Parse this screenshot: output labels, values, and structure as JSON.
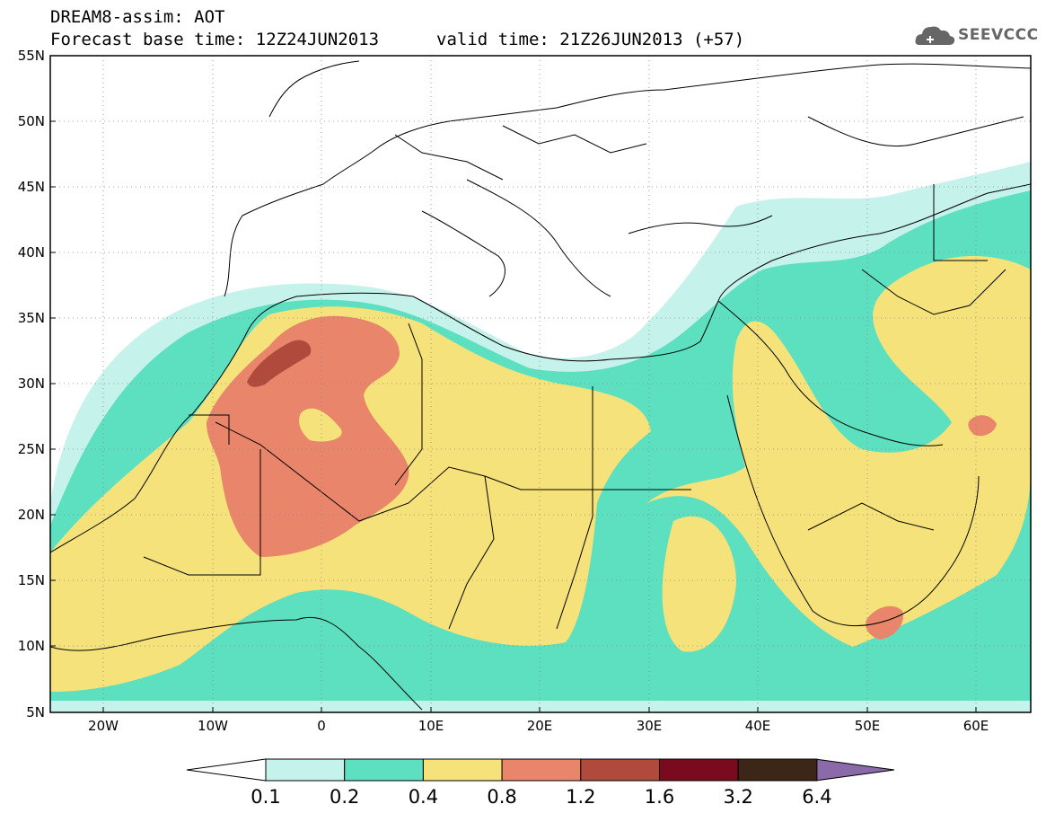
{
  "title": {
    "line1": "DREAM8-assim: AOT",
    "base_time": "Forecast base time: 12Z24JUN2013",
    "valid_time": "valid time: 21Z26JUN2013 (+57)"
  },
  "logo": {
    "text": "SEEVCCC",
    "icon": "cloud-icon"
  },
  "map": {
    "region": "North Africa, Europe and Middle East",
    "lon_range": [
      -25,
      65
    ],
    "lat_range": [
      5,
      55
    ],
    "lat_labels": [
      "55N",
      "50N",
      "45N",
      "40N",
      "35N",
      "30N",
      "25N",
      "20N",
      "15N",
      "10N",
      "5N"
    ],
    "lon_labels": [
      "20W",
      "10W",
      "0",
      "10E",
      "20E",
      "30E",
      "40E",
      "50E",
      "60E"
    ],
    "grid": "dotted"
  },
  "colorbar": {
    "levels": [
      "0.1",
      "0.2",
      "0.4",
      "0.8",
      "1.2",
      "1.6",
      "3.2",
      "6.4"
    ],
    "colors": [
      "#c6f2ec",
      "#5ce0c0",
      "#f5e27a",
      "#e8856a",
      "#b04a3c",
      "#7a0a1e",
      "#3c2618",
      "#8a6aa8"
    ],
    "under_color": "#ffffff",
    "over_color": "#8a6aa8"
  }
}
